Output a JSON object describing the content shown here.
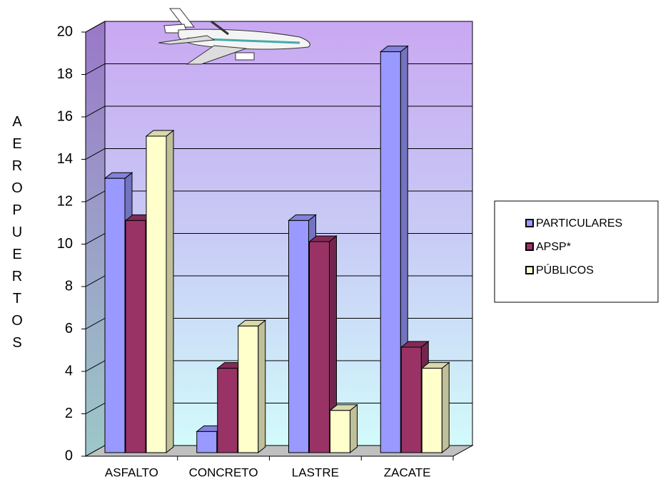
{
  "chart_data": {
    "type": "bar3d",
    "y_label": "AEROPUERTOS",
    "categories": [
      "ASFALTO",
      "CONCRETO",
      "LASTRE",
      "ZACATE"
    ],
    "series": [
      {
        "name": "PARTICULARES",
        "color": "#9999ff",
        "values": [
          13,
          1,
          11,
          19
        ]
      },
      {
        "name": "APSP*",
        "color": "#993366",
        "values": [
          11,
          4,
          10,
          5
        ]
      },
      {
        "name": "PÚBLICOS",
        "color": "#ffffcc",
        "values": [
          15,
          6,
          2,
          4
        ]
      }
    ],
    "ylim": [
      0,
      20
    ],
    "yticks": [
      0,
      2,
      4,
      6,
      8,
      10,
      12,
      14,
      16,
      18,
      20
    ],
    "grid": true,
    "legend": "right"
  }
}
